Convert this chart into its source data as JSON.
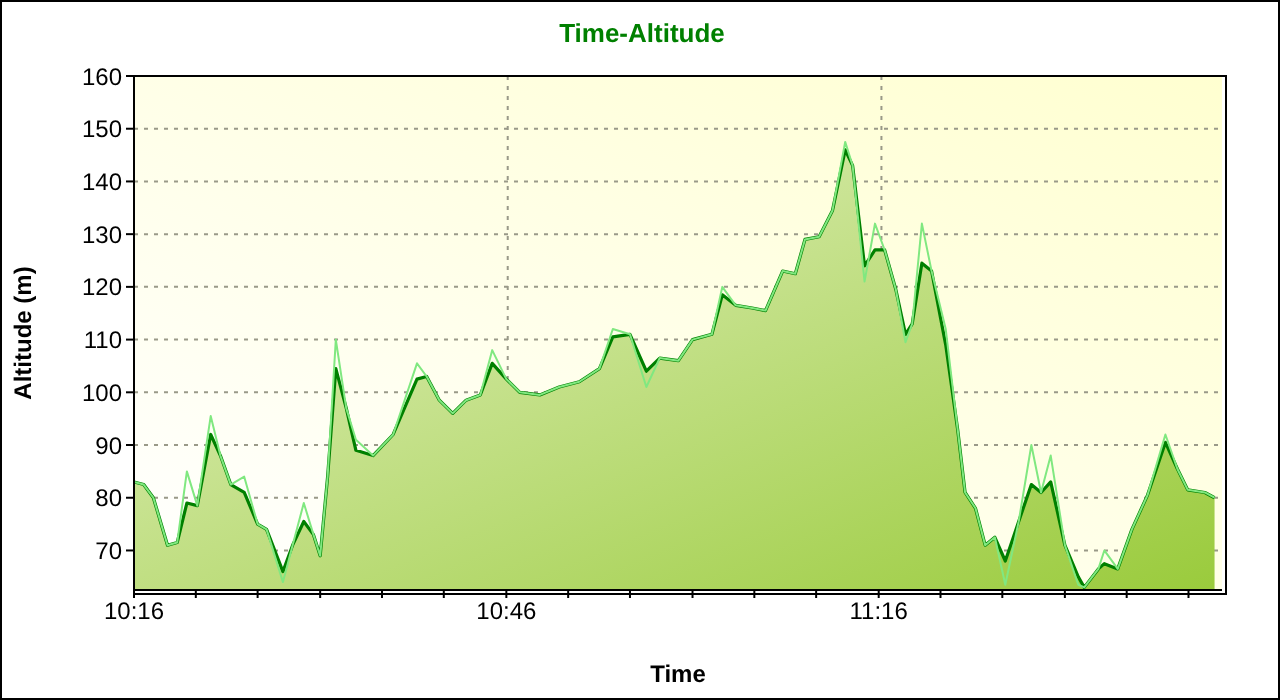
{
  "chart_data": {
    "type": "area",
    "title": "Time-Altitude",
    "xlabel": "Time",
    "ylabel": "Altitude (m)",
    "x": [
      10.267,
      10.28,
      10.293,
      10.312,
      10.325,
      10.338,
      10.352,
      10.37,
      10.383,
      10.397,
      10.415,
      10.433,
      10.445,
      10.467,
      10.48,
      10.495,
      10.508,
      10.517,
      10.527,
      10.538,
      10.552,
      10.565,
      10.588,
      10.615,
      10.647,
      10.66,
      10.677,
      10.695,
      10.713,
      10.732,
      10.748,
      10.767,
      10.785,
      10.812,
      10.838,
      10.865,
      10.892,
      10.91,
      10.933,
      10.955,
      10.973,
      10.998,
      11.017,
      11.043,
      11.057,
      11.075,
      11.097,
      11.115,
      11.138,
      11.155,
      11.168,
      11.187,
      11.205,
      11.222,
      11.232,
      11.248,
      11.262,
      11.275,
      11.29,
      11.303,
      11.312,
      11.325,
      11.338,
      11.357,
      11.373,
      11.383,
      11.397,
      11.41,
      11.423,
      11.437,
      11.455,
      11.472,
      11.485,
      11.498,
      11.517,
      11.535,
      11.543,
      11.562,
      11.57,
      11.588,
      11.607,
      11.628,
      11.652,
      11.668,
      11.682,
      11.705,
      11.718
    ],
    "series": [
      {
        "color": "#008000",
        "values": [
          83,
          82.5,
          80,
          71,
          71.5,
          79,
          78.5,
          92,
          88,
          82.5,
          81,
          75,
          74,
          66,
          71,
          75.5,
          73,
          69,
          84,
          104.5,
          97,
          89,
          88,
          92,
          102.5,
          103,
          98.5,
          96,
          98.5,
          99.5,
          105.5,
          102.5,
          100,
          99.5,
          101,
          102,
          104.5,
          110.5,
          111,
          104,
          106.5,
          106,
          110,
          111,
          118.5,
          116.5,
          116,
          115.5,
          123,
          122.5,
          129,
          129.5,
          134.5,
          146,
          143,
          124,
          127,
          127,
          119.5,
          111,
          113,
          124.5,
          123,
          109,
          93,
          81,
          78,
          71,
          72.5,
          68,
          75.5,
          82.5,
          81,
          83,
          71,
          65,
          63,
          66.5,
          67.5,
          66.5,
          74,
          80.5,
          90.5,
          85.5,
          81.5,
          81,
          80
        ]
      },
      {
        "type": "line",
        "color": "#80e880",
        "values": [
          83,
          82.5,
          80,
          71,
          71.5,
          85,
          78.5,
          95.5,
          88,
          82.5,
          84,
          75,
          74,
          64,
          71,
          79,
          73,
          69,
          84,
          110,
          97,
          91,
          88,
          92,
          105.5,
          103,
          98.5,
          96,
          98.5,
          99.5,
          108,
          102.5,
          100,
          99.5,
          101,
          102,
          104.5,
          112,
          111,
          101,
          106.5,
          106,
          110,
          111,
          120,
          116.5,
          116,
          115.5,
          123,
          122.5,
          129,
          129.5,
          134.5,
          147.5,
          143,
          121,
          132,
          127,
          119.5,
          109.5,
          113,
          132,
          123,
          112,
          93,
          81,
          78,
          71,
          72.5,
          63.5,
          75.5,
          90,
          81,
          88,
          71,
          63.5,
          63,
          66.5,
          70,
          66.5,
          74,
          80.5,
          92,
          85.5,
          81.5,
          81,
          80
        ]
      }
    ],
    "xlim": [
      10.267,
      11.728
    ],
    "xticks": [
      {
        "value": 10.267,
        "label": "10:16"
      },
      {
        "value": 10.35,
        "label": null
      },
      {
        "value": 10.433,
        "label": null
      },
      {
        "value": 10.517,
        "label": null
      },
      {
        "value": 10.6,
        "label": null
      },
      {
        "value": 10.683,
        "label": null
      },
      {
        "value": 10.767,
        "label": "10:46"
      },
      {
        "value": 10.85,
        "label": null
      },
      {
        "value": 10.933,
        "label": null
      },
      {
        "value": 11.017,
        "label": null
      },
      {
        "value": 11.1,
        "label": null
      },
      {
        "value": 11.183,
        "label": null
      },
      {
        "value": 11.267,
        "label": "11:16"
      },
      {
        "value": 11.35,
        "label": null
      },
      {
        "value": 11.433,
        "label": null
      },
      {
        "value": 11.517,
        "label": null
      },
      {
        "value": 11.6,
        "label": null
      },
      {
        "value": 11.683,
        "label": null
      }
    ],
    "ylim": [
      62.5,
      160
    ],
    "yticks": [
      70,
      80,
      90,
      100,
      110,
      120,
      130,
      140,
      150,
      160
    ],
    "grid": true,
    "marker": "none",
    "line_style": "solid"
  }
}
